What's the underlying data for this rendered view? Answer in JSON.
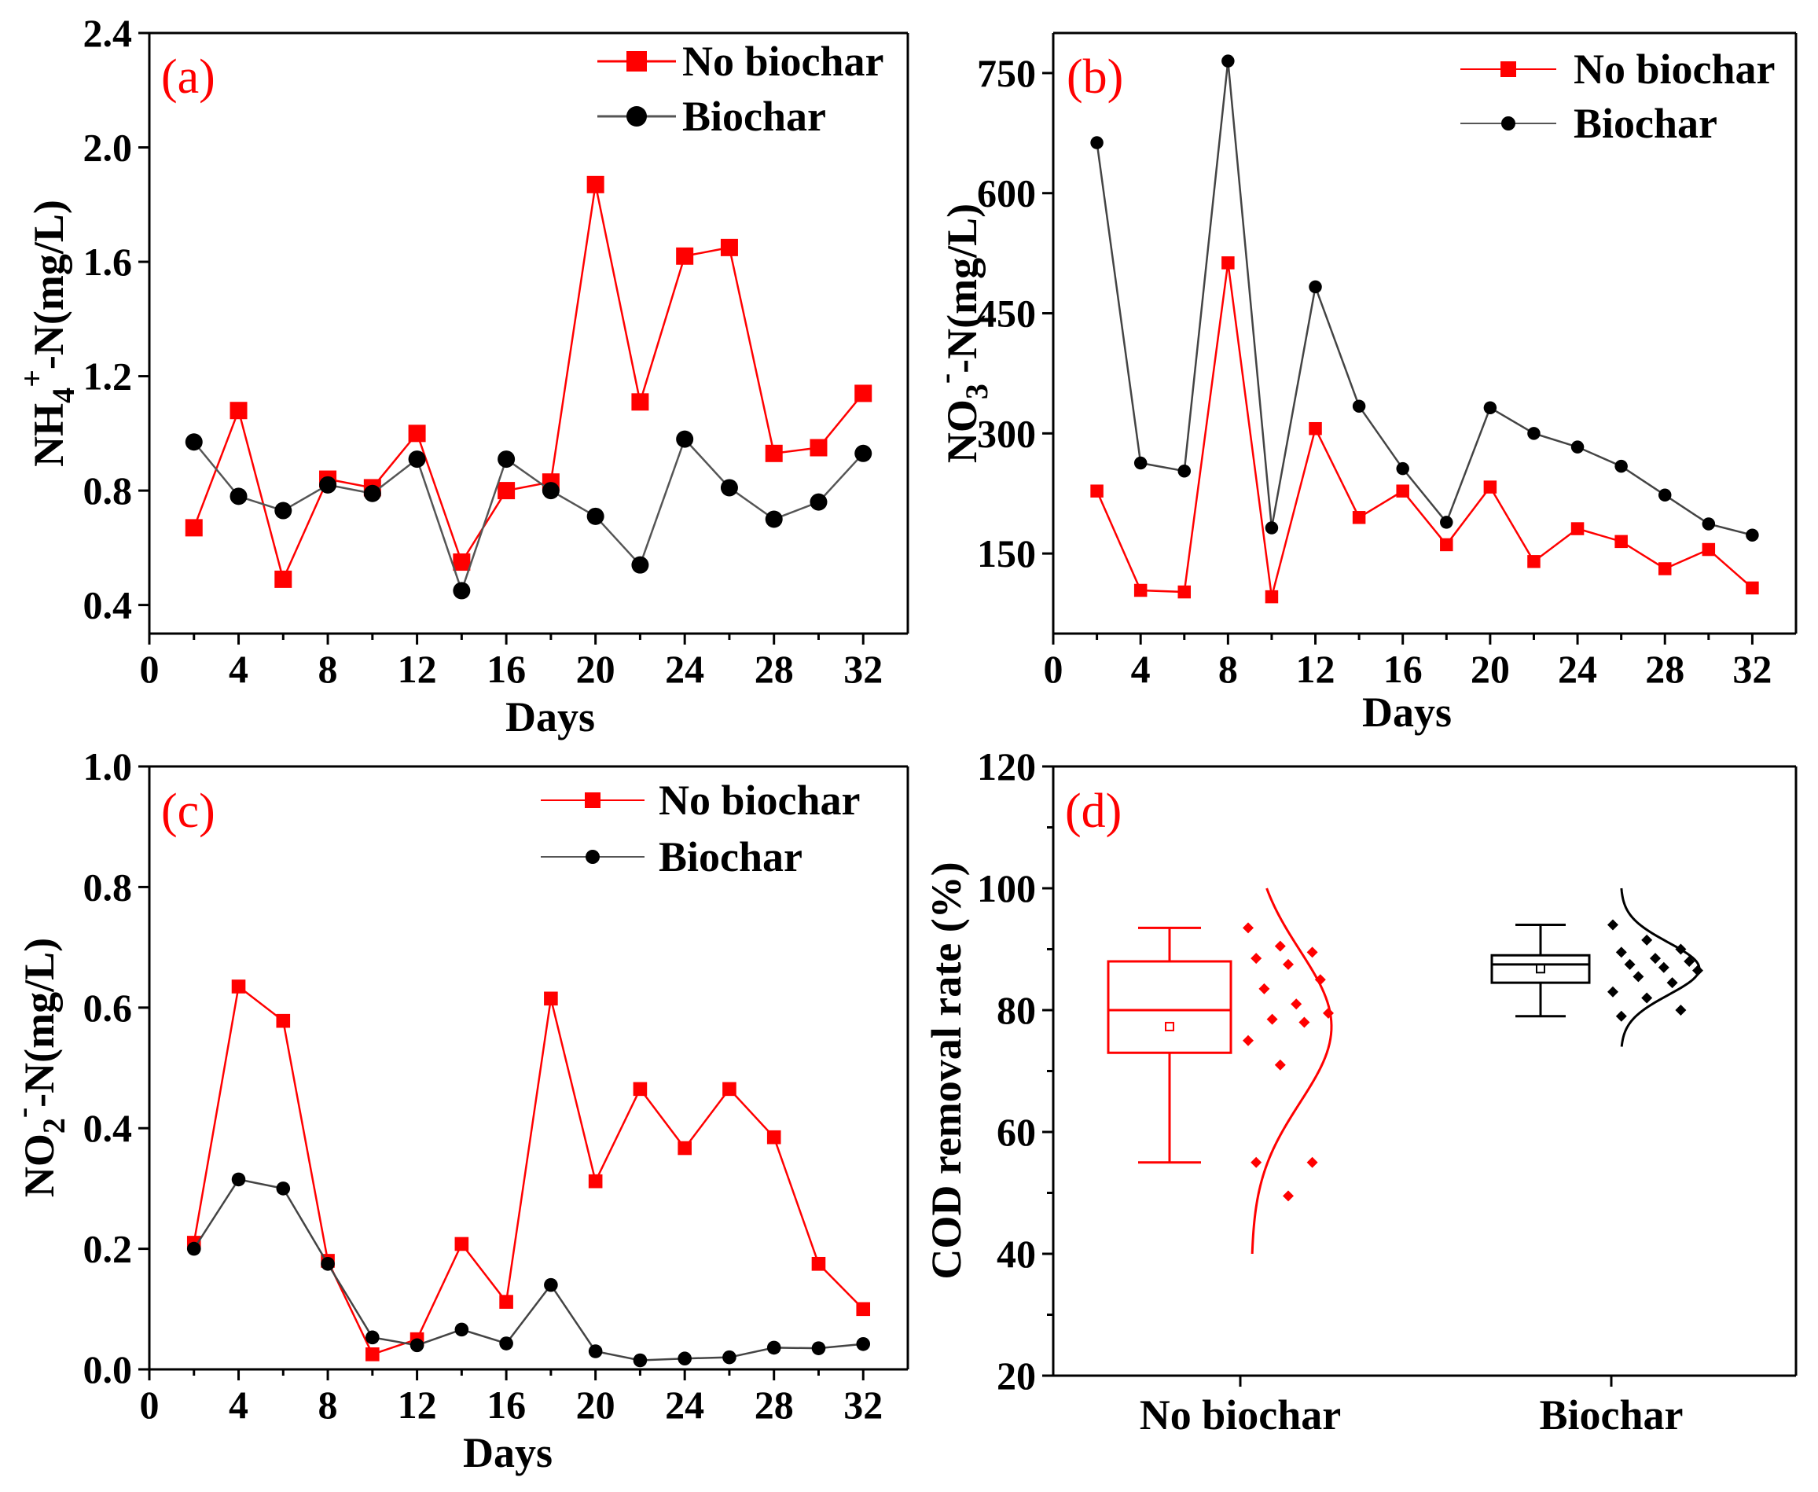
{
  "colors": {
    "no_biochar": "#ff0000",
    "biochar": "#000000",
    "biochar_line_b": "#555555"
  },
  "chart_data": [
    {
      "type": "line",
      "panel": "(a)",
      "xlabel": "Days",
      "ylabel_main": "NH",
      "ylabel_sub": "4",
      "ylabel_sup": "+",
      "ylabel_rest": "-N(mg/L)",
      "xlim": [
        0,
        34
      ],
      "ylim": [
        0.3,
        2.4
      ],
      "xticks": [
        0,
        4,
        8,
        12,
        16,
        20,
        24,
        28,
        32
      ],
      "yticks": [
        0.4,
        0.8,
        1.2,
        1.6,
        2.0,
        2.4
      ],
      "ytick_labels": [
        "0.4",
        "0.8",
        "1.2",
        "1.6",
        "2.0",
        "2.4"
      ],
      "x": [
        2,
        4,
        6,
        8,
        10,
        12,
        14,
        16,
        18,
        20,
        22,
        24,
        26,
        28,
        30,
        32
      ],
      "series": [
        {
          "name": "No biochar",
          "values": [
            0.67,
            1.08,
            0.49,
            0.84,
            0.81,
            1.0,
            0.55,
            0.8,
            0.83,
            1.87,
            1.11,
            1.62,
            1.65,
            0.93,
            0.95,
            1.14
          ]
        },
        {
          "name": "Biochar",
          "values": [
            0.97,
            0.78,
            0.73,
            0.82,
            0.79,
            0.91,
            0.45,
            0.91,
            0.8,
            0.71,
            0.54,
            0.98,
            0.81,
            0.7,
            0.76,
            0.93
          ]
        }
      ],
      "legend": {
        "position": "top-right",
        "entries": [
          "No biochar",
          "Biochar"
        ]
      }
    },
    {
      "type": "line",
      "panel": "(b)",
      "xlabel": "Days",
      "ylabel_main": "NO",
      "ylabel_sub": "3",
      "ylabel_sup": "-",
      "ylabel_rest": "-N(mg/L)",
      "xlim": [
        0,
        34
      ],
      "ylim": [
        50,
        800
      ],
      "xticks": [
        0,
        4,
        8,
        12,
        16,
        20,
        24,
        28,
        32
      ],
      "yticks": [
        150,
        300,
        450,
        600,
        750
      ],
      "ytick_labels": [
        "150",
        "300",
        "450",
        "600",
        "750"
      ],
      "x": [
        2,
        4,
        6,
        8,
        10,
        12,
        14,
        16,
        18,
        20,
        22,
        24,
        26,
        28,
        30,
        32
      ],
      "series": [
        {
          "name": "No biochar",
          "values": [
            228,
            104,
            102,
            513,
            96,
            306,
            195,
            228,
            161,
            233,
            140,
            181,
            165,
            131,
            155,
            107
          ]
        },
        {
          "name": "Biochar",
          "values": [
            663,
            263,
            253,
            765,
            182,
            483,
            334,
            256,
            189,
            332,
            300,
            283,
            259,
            223,
            187,
            173
          ]
        }
      ],
      "legend": {
        "position": "top-right",
        "entries": [
          "No biochar",
          "Biochar"
        ]
      }
    },
    {
      "type": "line",
      "panel": "(c)",
      "xlabel": "Days",
      "ylabel_main": "NO",
      "ylabel_sub": "2",
      "ylabel_sup": "-",
      "ylabel_rest": "-N(mg/L)",
      "xlim": [
        0,
        34
      ],
      "ylim": [
        0.0,
        1.0
      ],
      "xticks": [
        0,
        4,
        8,
        12,
        16,
        20,
        24,
        28,
        32
      ],
      "yticks": [
        0.0,
        0.2,
        0.4,
        0.6,
        0.8,
        1.0
      ],
      "ytick_labels": [
        "0.0",
        "0.2",
        "0.4",
        "0.6",
        "0.8",
        "1.0"
      ],
      "x": [
        2,
        4,
        6,
        8,
        10,
        12,
        14,
        16,
        18,
        20,
        22,
        24,
        26,
        28,
        30,
        32
      ],
      "series": [
        {
          "name": "No biochar",
          "values": [
            0.21,
            0.635,
            0.578,
            0.18,
            0.025,
            0.05,
            0.208,
            0.112,
            0.615,
            0.312,
            0.465,
            0.367,
            0.465,
            0.385,
            0.175,
            0.1
          ]
        },
        {
          "name": "Biochar",
          "values": [
            0.2,
            0.315,
            0.3,
            0.175,
            0.053,
            0.04,
            0.066,
            0.043,
            0.14,
            0.03,
            0.015,
            0.018,
            0.02,
            0.036,
            0.035,
            0.042
          ]
        }
      ],
      "legend": {
        "position": "top-right",
        "entries": [
          "No biochar",
          "Biochar"
        ]
      }
    },
    {
      "type": "box",
      "panel": "(d)",
      "ylabel": "COD removal rate (%)",
      "ylim": [
        20,
        120
      ],
      "yticks": [
        20,
        40,
        60,
        80,
        100,
        120
      ],
      "ytick_labels": [
        "20",
        "40",
        "60",
        "80",
        "100",
        "120"
      ],
      "categories": [
        "No biochar",
        "Biochar"
      ],
      "boxes": [
        {
          "name": "No biochar",
          "whisker_low": 55,
          "q1": 73,
          "median": 80,
          "q3": 88,
          "whisker_high": 93.5,
          "mean": 77.3,
          "points": [
            93.5,
            90.5,
            89.5,
            88.5,
            87.5,
            85,
            83.5,
            81,
            79.5,
            78.5,
            78,
            75,
            71,
            55,
            55,
            49.5
          ],
          "curve": {
            "mean": 77.3,
            "sd": 12.5,
            "min": 40,
            "max": 100
          }
        },
        {
          "name": "Biochar",
          "whisker_low": 79,
          "q1": 84.5,
          "median": 87.5,
          "q3": 89,
          "whisker_high": 94,
          "mean": 86.8,
          "points": [
            94,
            91.5,
            90,
            89.5,
            88.5,
            88,
            87.5,
            87,
            86.5,
            85.5,
            84.5,
            83,
            82,
            80,
            79
          ],
          "curve": {
            "mean": 86.8,
            "sd": 4.3,
            "min": 74,
            "max": 100
          }
        }
      ]
    }
  ]
}
